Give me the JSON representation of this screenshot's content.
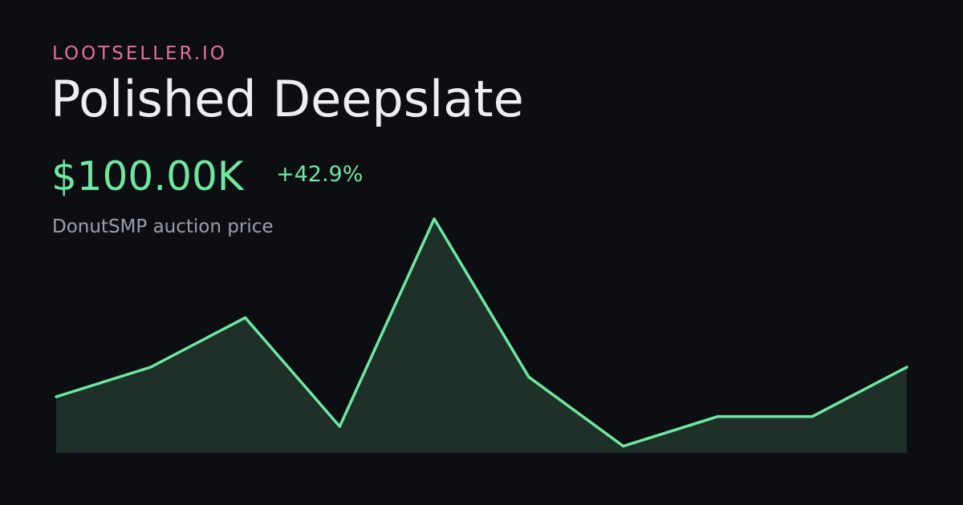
{
  "chart_data": {
    "type": "area",
    "brand": "LOOTSELLER.IO",
    "title": "Polished Deepslate",
    "price": "$100.00K",
    "change": "+42.9%",
    "subtitle": "DonutSMP auction price",
    "values": [
      70000,
      100000,
      150000,
      40000,
      250000,
      90000,
      20000,
      50000,
      50000,
      100000
    ],
    "ylim": [
      0,
      300000
    ],
    "line_color": "#6ee7a0",
    "fill_color": "#1f3029"
  }
}
